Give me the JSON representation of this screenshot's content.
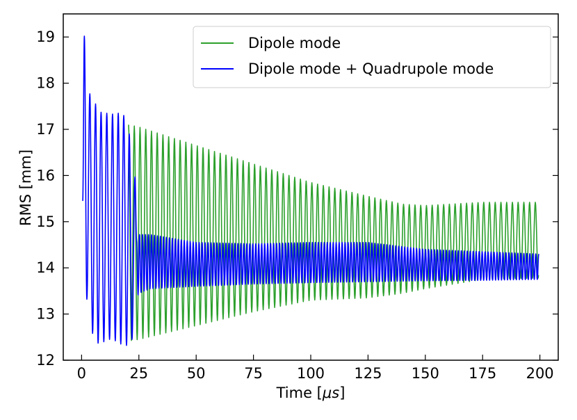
{
  "chart_data": {
    "type": "line",
    "xlabel_prefix": "Time [",
    "xlabel_unit": "μs",
    "xlabel_suffix": "]",
    "ylabel": "RMS [mm]",
    "xlim": [
      -8,
      208
    ],
    "ylim": [
      12.0,
      19.5
    ],
    "xticks": [
      0,
      25,
      50,
      75,
      100,
      125,
      150,
      175,
      200
    ],
    "yticks": [
      12,
      13,
      14,
      15,
      16,
      17,
      18,
      19
    ],
    "grid": false,
    "legend_position": "top-right",
    "series": [
      {
        "name": "Dipole mode",
        "color": "#2ca02c",
        "start_x": 20.5,
        "end_x": 199.5,
        "period_us": 2.5,
        "upper_envelope": {
          "x": [
            20.5,
            25,
            50,
            75,
            100,
            125,
            140,
            150,
            175,
            199.5
          ],
          "y": [
            17.1,
            17.05,
            16.65,
            16.25,
            15.85,
            15.55,
            15.38,
            15.35,
            15.42,
            15.42
          ]
        },
        "lower_envelope": {
          "x": [
            20.5,
            25,
            50,
            75,
            100,
            125,
            140,
            150,
            175,
            199.5
          ],
          "y": [
            12.42,
            12.45,
            12.75,
            13.05,
            13.3,
            13.35,
            13.45,
            13.55,
            13.75,
            13.78
          ]
        }
      },
      {
        "name": "Dipole mode + Quadrupole mode",
        "color": "#0000ff",
        "start_x": 0.5,
        "end_x": 199.5,
        "peaks": [
          [
            1.2,
            19.02
          ],
          [
            3.6,
            17.77
          ],
          [
            6.1,
            17.55
          ],
          [
            8.5,
            17.37
          ],
          [
            11.0,
            17.35
          ],
          [
            13.5,
            17.33
          ],
          [
            16.0,
            17.35
          ],
          [
            18.4,
            17.3
          ],
          [
            20.8,
            16.9
          ],
          [
            23.3,
            15.97
          ]
        ],
        "troughs": [
          [
            0.5,
            15.45
          ],
          [
            2.3,
            13.32
          ],
          [
            4.8,
            12.58
          ],
          [
            7.2,
            12.37
          ],
          [
            9.7,
            12.4
          ],
          [
            12.2,
            12.45
          ],
          [
            14.7,
            12.42
          ],
          [
            17.1,
            12.35
          ],
          [
            19.6,
            12.32
          ],
          [
            22.0,
            12.45
          ]
        ],
        "period_us": 1.3,
        "upper_envelope": {
          "x": [
            24.0,
            25,
            30,
            50,
            75,
            100,
            125,
            150,
            175,
            199.5
          ],
          "y": [
            14.6,
            14.72,
            14.72,
            14.55,
            14.52,
            14.55,
            14.55,
            14.4,
            14.35,
            14.3
          ]
        },
        "lower_envelope": {
          "x": [
            24.0,
            25,
            30,
            50,
            75,
            100,
            125,
            150,
            175,
            199.5
          ],
          "y": [
            13.35,
            13.45,
            13.55,
            13.6,
            13.65,
            13.68,
            13.7,
            13.72,
            13.73,
            13.75
          ]
        }
      }
    ]
  }
}
